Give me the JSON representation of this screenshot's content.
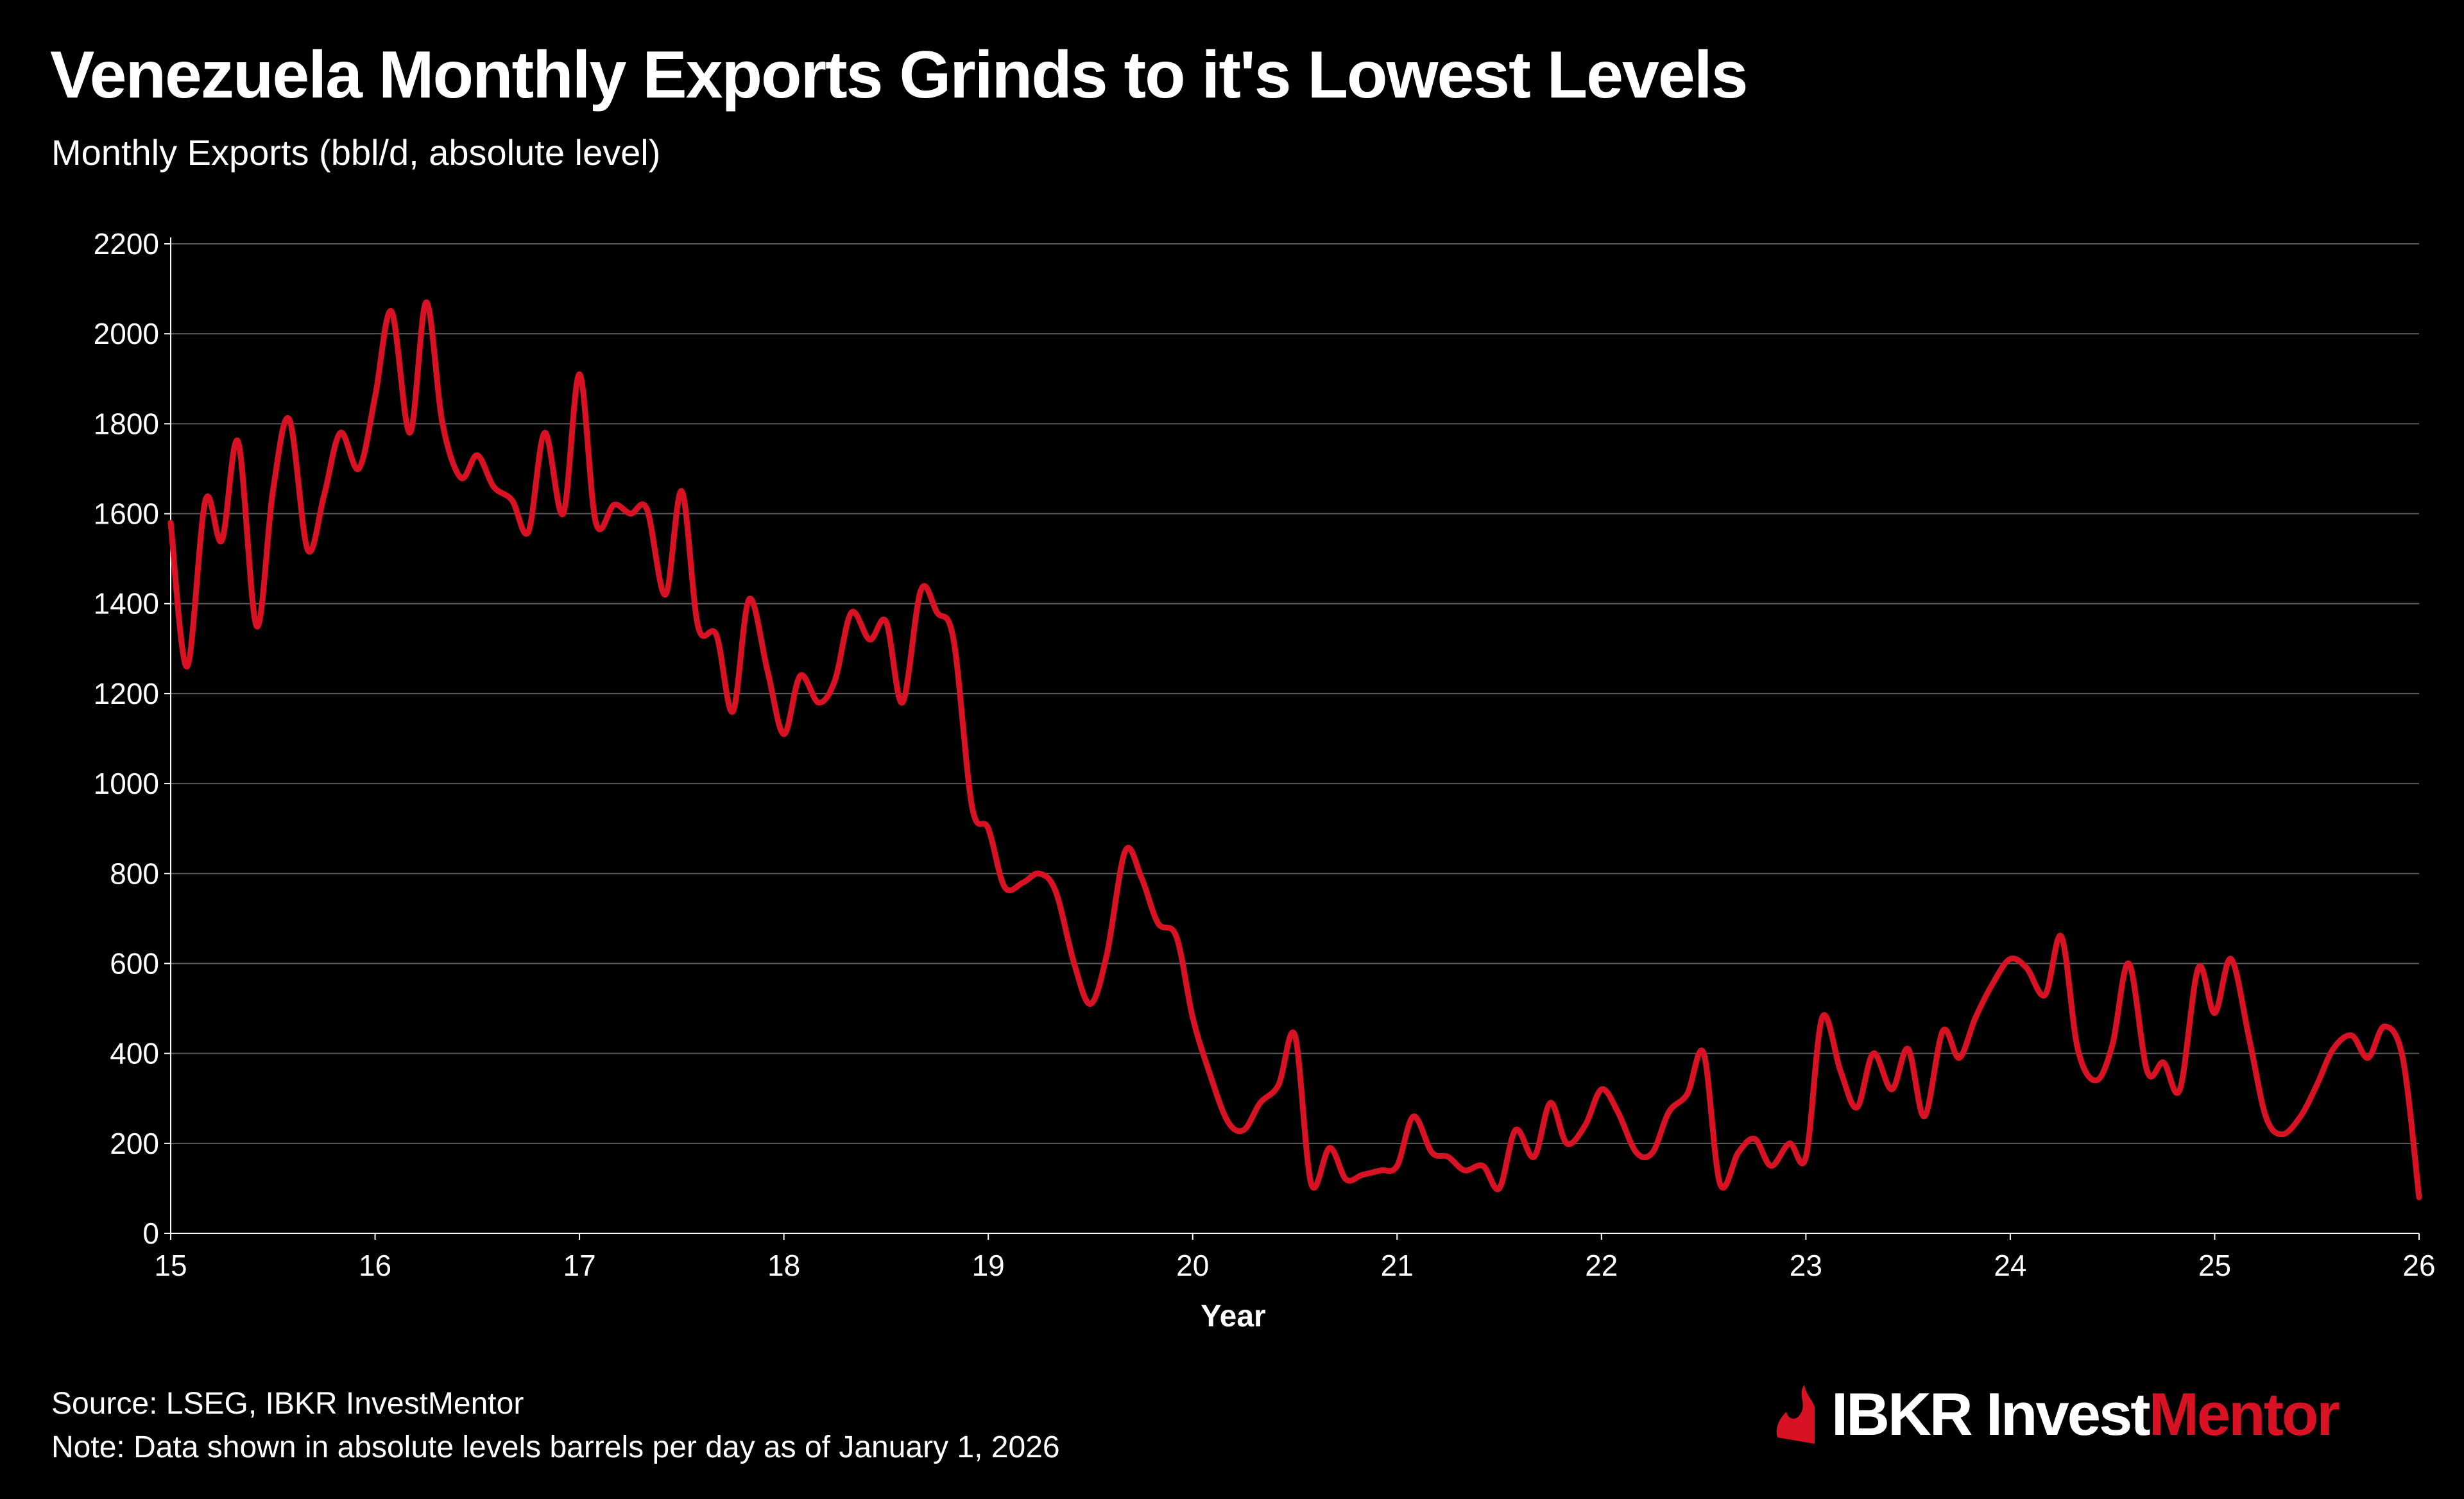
{
  "header": {
    "title": "Venezuela Monthly Exports Grinds to it's Lowest Levels",
    "subtitle": "Monthly Exports (bbl/d, absolute level)"
  },
  "footer": {
    "source": "Source: LSEG, IBKR InvestMentor",
    "note": "Note: Data shown in absolute levels barrels per day as of  January 1, 2026"
  },
  "logo": {
    "part1": "IBKR Invest",
    "part2": "Mentor",
    "icon": "ibkr-flame-icon",
    "accent_color": "#d81222"
  },
  "chart_data": {
    "type": "line",
    "title": "Venezuela Monthly Exports Grinds to it's Lowest Levels",
    "subtitle": "Monthly Exports (bbl/d, absolute level)",
    "xlabel": "Year",
    "ylabel": "",
    "xlim": [
      15,
      26
    ],
    "ylim": [
      0,
      2200
    ],
    "xticks": [
      "15",
      "16",
      "17",
      "18",
      "19",
      "20",
      "21",
      "22",
      "23",
      "24",
      "25",
      "26"
    ],
    "yticks": [
      "0",
      "200",
      "400",
      "600",
      "800",
      "1000",
      "1200",
      "1400",
      "1600",
      "1800",
      "2000",
      "2200"
    ],
    "grid": "horizontal",
    "line_color": "#d81222",
    "series": [
      {
        "x": [
          15.0,
          15.08,
          15.17,
          15.25,
          15.33,
          15.42,
          15.5,
          15.58,
          15.67,
          15.75,
          15.83,
          15.92,
          16.0,
          16.08,
          16.17,
          16.25,
          16.33,
          16.42,
          16.5,
          16.58,
          16.67,
          16.75,
          16.83,
          16.92,
          17.0,
          17.08,
          17.17,
          17.25,
          17.33,
          17.42,
          17.5,
          17.58,
          17.67,
          17.75,
          17.83,
          17.92,
          18.0,
          18.08,
          18.17,
          18.25,
          18.33,
          18.42,
          18.5,
          18.58,
          18.67,
          18.75,
          18.83,
          18.92,
          19.0,
          19.08,
          19.17,
          19.25,
          19.33,
          19.42,
          19.5,
          19.58,
          19.67,
          19.75,
          19.83,
          19.92,
          20.0,
          20.08,
          20.17,
          20.25,
          20.33,
          20.42,
          20.5,
          20.58,
          20.67,
          20.75,
          20.83,
          20.92,
          21.0,
          21.08,
          21.17,
          21.25,
          21.33,
          21.42,
          21.5,
          21.58,
          21.67,
          21.75,
          21.83,
          21.92,
          22.0,
          22.08,
          22.17,
          22.25,
          22.33,
          22.42,
          22.5,
          22.58,
          22.67,
          22.75,
          22.83,
          22.92,
          23.0,
          23.08,
          23.17,
          23.25,
          23.33,
          23.42,
          23.5,
          23.58,
          23.67,
          23.75,
          23.83,
          23.92,
          24.0,
          24.08,
          24.17,
          24.25,
          24.33,
          24.42,
          24.5,
          24.58,
          24.67,
          24.75,
          24.83,
          24.92,
          25.0,
          25.08,
          25.17,
          25.25,
          25.33,
          25.42,
          25.5,
          25.58,
          25.67,
          25.75,
          25.83,
          25.92,
          26.0
        ],
        "y": [
          1580,
          1260,
          1630,
          1540,
          1760,
          1350,
          1650,
          1810,
          1520,
          1640,
          1780,
          1700,
          1860,
          2050,
          1780,
          2070,
          1800,
          1680,
          1730,
          1660,
          1630,
          1560,
          1780,
          1600,
          1910,
          1580,
          1620,
          1600,
          1610,
          1420,
          1650,
          1350,
          1330,
          1160,
          1410,
          1250,
          1110,
          1240,
          1180,
          1230,
          1380,
          1320,
          1360,
          1180,
          1430,
          1380,
          1320,
          950,
          900,
          770,
          780,
          800,
          760,
          600,
          510,
          620,
          850,
          790,
          690,
          660,
          480,
          360,
          250,
          230,
          290,
          330,
          440,
          110,
          190,
          120,
          130,
          140,
          150,
          260,
          180,
          170,
          140,
          150,
          100,
          230,
          170,
          290,
          200,
          240,
          320,
          270,
          180,
          180,
          270,
          310,
          400,
          110,
          180,
          210,
          150,
          200,
          170,
          480,
          360,
          280,
          400,
          320,
          410,
          260,
          450,
          390,
          480,
          560,
          610,
          590,
          530,
          660,
          410,
          340,
          420,
          600,
          360,
          380,
          320,
          590,
          490,
          610,
          430,
          260,
          220,
          260,
          330,
          410,
          440,
          390,
          460,
          390,
          80
        ]
      }
    ]
  }
}
